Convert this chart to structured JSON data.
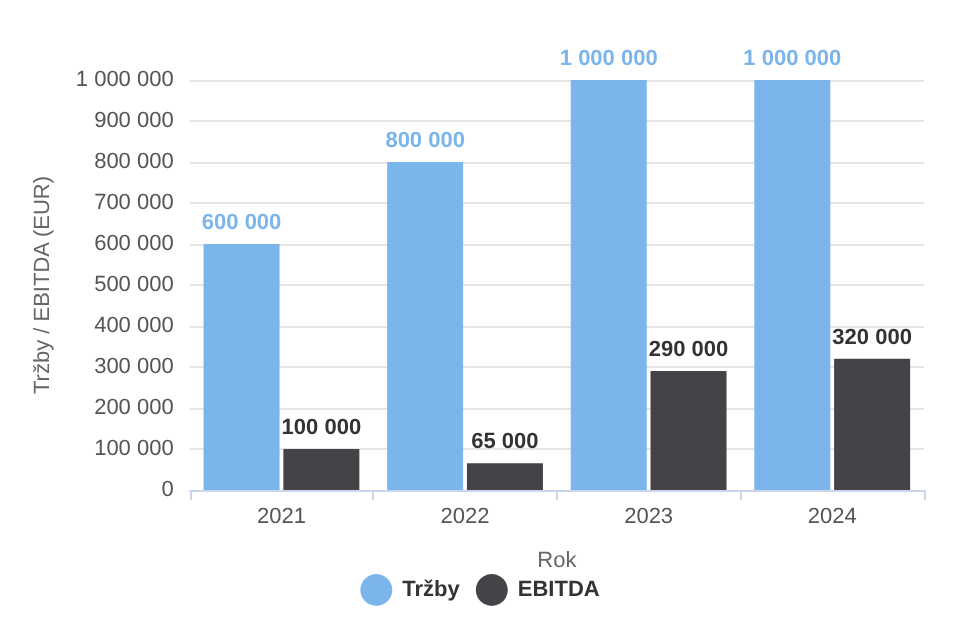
{
  "chart_data": {
    "type": "bar",
    "xlabel": "Rok",
    "ylabel": "Tržby / EBITDA (EUR)",
    "categories": [
      "2021",
      "2022",
      "2023",
      "2024"
    ],
    "series": [
      {
        "name": "Tržby",
        "color": "#7cb5ec",
        "values": [
          600000,
          800000,
          1000000,
          1000000
        ],
        "value_labels": [
          "600 000",
          "800 000",
          "1 000 000",
          "1 000 000"
        ]
      },
      {
        "name": "EBITDA",
        "color": "#434348",
        "values": [
          100000,
          65000,
          290000,
          320000
        ],
        "value_labels": [
          "100 000",
          "65 000",
          "290 000",
          "320 000"
        ]
      }
    ],
    "ylim": [
      0,
      1000000
    ],
    "yticks": [
      {
        "value": 0,
        "label": "0"
      },
      {
        "value": 100000,
        "label": "100 000"
      },
      {
        "value": 200000,
        "label": "200 000"
      },
      {
        "value": 300000,
        "label": "300 000"
      },
      {
        "value": 400000,
        "label": "400 000"
      },
      {
        "value": 500000,
        "label": "500 000"
      },
      {
        "value": 600000,
        "label": "600 000"
      },
      {
        "value": 700000,
        "label": "700 000"
      },
      {
        "value": 800000,
        "label": "800 000"
      },
      {
        "value": 900000,
        "label": "900 000"
      },
      {
        "value": 1000000,
        "label": "1 000 000"
      }
    ],
    "grid": "y",
    "legend": "bottom"
  }
}
